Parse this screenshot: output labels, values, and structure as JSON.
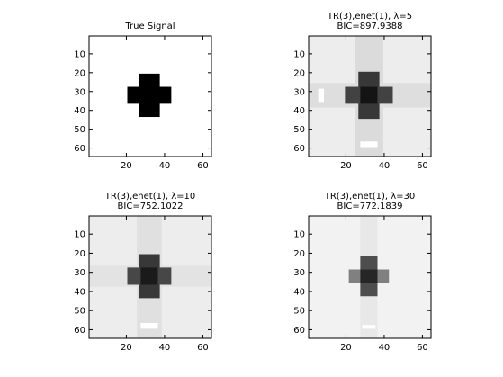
{
  "chart_data": [
    {
      "type": "heatmap",
      "title_lines": [
        "True Signal"
      ],
      "xlim": [
        0.5,
        64.5
      ],
      "ylim": [
        0.5,
        64.5
      ],
      "y_reversed": true,
      "xticks": [
        20,
        40,
        60
      ],
      "yticks": [
        10,
        20,
        30,
        40,
        50,
        60
      ],
      "xtick_labels": [
        "20",
        "40",
        "60"
      ],
      "ytick_labels": [
        "10",
        "20",
        "30",
        "40",
        "50",
        "60"
      ],
      "colormap": "gray (0 = black, 1 = white)",
      "background_intensity": 1.0,
      "shapes": [
        {
          "name": "vertical-bar",
          "x": [
            27,
            37
          ],
          "y": [
            21,
            43
          ],
          "intensity": 0.0
        },
        {
          "name": "horizontal-bar",
          "x": [
            21,
            43
          ],
          "y": [
            28,
            36
          ],
          "intensity": 0.0
        }
      ]
    },
    {
      "type": "heatmap",
      "title_lines": [
        "TR(3),enet(1), λ=5",
        "BIC=897.9388"
      ],
      "xlim": [
        0.5,
        64.5
      ],
      "ylim": [
        0.5,
        64.5
      ],
      "y_reversed": true,
      "xticks": [
        20,
        40,
        60
      ],
      "yticks": [
        10,
        20,
        30,
        40,
        50,
        60
      ],
      "xtick_labels": [
        "20",
        "40",
        "60"
      ],
      "ytick_labels": [
        "10",
        "20",
        "30",
        "40",
        "50",
        "60"
      ],
      "colormap": "gray (0 = black, 1 = white)",
      "background_intensity": 0.93,
      "shapes": [
        {
          "name": "vertical-streak-band",
          "x": [
            25,
            39
          ],
          "y": [
            1,
            64
          ],
          "intensity": 0.86
        },
        {
          "name": "horizontal-streak-band",
          "x": [
            1,
            64
          ],
          "y": [
            26,
            38
          ],
          "intensity": 0.87
        },
        {
          "name": "vertical-bar",
          "x": [
            27,
            37
          ],
          "y": [
            20,
            44
          ],
          "intensity": 0.22
        },
        {
          "name": "horizontal-bar",
          "x": [
            20,
            44
          ],
          "y": [
            28,
            36
          ],
          "intensity": 0.26
        },
        {
          "name": "center",
          "x": [
            28,
            36
          ],
          "y": [
            28,
            36
          ],
          "intensity": 0.08
        },
        {
          "name": "bright-spot",
          "x": [
            28,
            36
          ],
          "y": [
            57,
            59
          ],
          "intensity": 1.0
        },
        {
          "name": "bright-spot-2",
          "x": [
            6,
            8
          ],
          "y": [
            29,
            35
          ],
          "intensity": 1.0
        }
      ]
    },
    {
      "type": "heatmap",
      "title_lines": [
        "TR(3),enet(1), λ=10",
        "BIC=752.1022"
      ],
      "xlim": [
        0.5,
        64.5
      ],
      "ylim": [
        0.5,
        64.5
      ],
      "y_reversed": true,
      "xticks": [
        20,
        40,
        60
      ],
      "yticks": [
        10,
        20,
        30,
        40,
        50,
        60
      ],
      "xtick_labels": [
        "20",
        "40",
        "60"
      ],
      "ytick_labels": [
        "10",
        "20",
        "30",
        "40",
        "50",
        "60"
      ],
      "colormap": "gray (0 = black, 1 = white)",
      "background_intensity": 0.93,
      "shapes": [
        {
          "name": "vertical-streak-band",
          "x": [
            26,
            38
          ],
          "y": [
            1,
            64
          ],
          "intensity": 0.88
        },
        {
          "name": "horizontal-streak-band",
          "x": [
            1,
            64
          ],
          "y": [
            27,
            37
          ],
          "intensity": 0.89
        },
        {
          "name": "vertical-bar",
          "x": [
            27,
            37
          ],
          "y": [
            21,
            43
          ],
          "intensity": 0.22
        },
        {
          "name": "horizontal-bar",
          "x": [
            21,
            43
          ],
          "y": [
            28,
            36
          ],
          "intensity": 0.28
        },
        {
          "name": "center",
          "x": [
            28,
            36
          ],
          "y": [
            28,
            36
          ],
          "intensity": 0.1
        },
        {
          "name": "bright-spot",
          "x": [
            28,
            36
          ],
          "y": [
            57,
            59
          ],
          "intensity": 1.0
        }
      ]
    },
    {
      "type": "heatmap",
      "title_lines": [
        "TR(3),enet(1), λ=30",
        "BIC=772.1839"
      ],
      "xlim": [
        0.5,
        64.5
      ],
      "ylim": [
        0.5,
        64.5
      ],
      "y_reversed": true,
      "xticks": [
        20,
        40,
        60
      ],
      "yticks": [
        10,
        20,
        30,
        40,
        50,
        60
      ],
      "xtick_labels": [
        "20",
        "40",
        "60"
      ],
      "ytick_labels": [
        "10",
        "20",
        "30",
        "40",
        "50",
        "60"
      ],
      "colormap": "gray (0 = black, 1 = white)",
      "background_intensity": 0.95,
      "shapes": [
        {
          "name": "vertical-streak-band",
          "x": [
            28,
            36
          ],
          "y": [
            1,
            64
          ],
          "intensity": 0.91
        },
        {
          "name": "vertical-bar",
          "x": [
            28,
            36
          ],
          "y": [
            22,
            42
          ],
          "intensity": 0.3
        },
        {
          "name": "horizontal-bar",
          "x": [
            22,
            42
          ],
          "y": [
            29,
            35
          ],
          "intensity": 0.5
        },
        {
          "name": "center",
          "x": [
            28,
            36
          ],
          "y": [
            29,
            35
          ],
          "intensity": 0.15
        },
        {
          "name": "bright-spot",
          "x": [
            29,
            35
          ],
          "y": [
            58,
            59
          ],
          "intensity": 1.0
        }
      ]
    }
  ]
}
